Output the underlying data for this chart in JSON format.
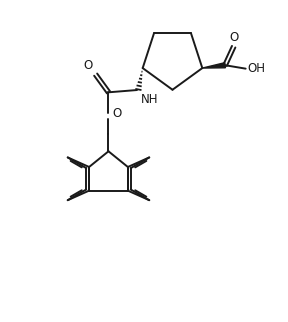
{
  "bg_color": "#ffffff",
  "line_color": "#1a1a1a",
  "line_width": 1.4,
  "font_size": 8.5,
  "figsize": [
    2.88,
    3.22
  ],
  "dpi": 100,
  "xlim": [
    0,
    10
  ],
  "ylim": [
    0,
    11.2
  ]
}
